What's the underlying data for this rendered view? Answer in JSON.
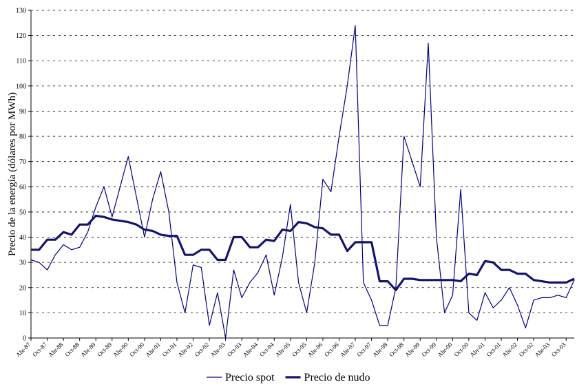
{
  "chart_data": {
    "type": "line",
    "y_label": "Precio de la energía (dólares por MWh)",
    "categories": [
      "Abr-87",
      null,
      "Oct-87",
      null,
      "Abr-88",
      null,
      "Oct-88",
      null,
      "Abr-89",
      null,
      "Oct-89",
      null,
      "Abr-90",
      null,
      "Oct-90",
      null,
      "Abr-91",
      null,
      "Oct-91",
      null,
      "Abr-92",
      null,
      "Oct-92",
      null,
      "Abr-93",
      null,
      "Oct-93",
      null,
      "Abr-94",
      null,
      "Oct-94",
      null,
      "Abr-95",
      null,
      "Oct-95",
      null,
      "Abr-96",
      null,
      "Oct-96",
      null,
      "Abr-97",
      null,
      "Oct-97",
      null,
      "Abr-98",
      null,
      "Oct-98",
      null,
      "Abr-99",
      null,
      "Oct-99",
      null,
      "Abr-00",
      null,
      "Oct-00",
      null,
      "Abr-01",
      null,
      "Oct-01",
      null,
      "Abr-02",
      null,
      "Oct-02",
      null,
      "Abr-03",
      null,
      "Oct-03",
      null
    ],
    "series": [
      {
        "name": "Precio spot",
        "color": "#000080",
        "width": 1.2,
        "values": [
          31,
          30,
          27,
          33,
          37,
          35,
          36,
          42,
          52,
          60,
          48,
          60,
          72,
          56,
          40,
          55,
          66,
          50,
          22,
          10,
          29,
          28,
          5,
          18,
          0,
          27,
          16,
          22,
          26,
          33,
          17,
          32,
          53,
          22,
          10,
          30,
          63,
          58,
          80,
          100,
          124,
          22,
          15,
          5,
          5,
          20,
          80,
          70,
          60,
          117,
          40,
          10,
          17,
          59,
          10,
          7,
          18,
          12,
          15,
          20,
          13,
          4,
          15,
          16,
          16,
          17,
          16,
          23
        ]
      },
      {
        "name": "Precio de nudo",
        "color": "#14146e",
        "width": 3.2,
        "values": [
          35,
          35,
          39,
          39,
          42,
          41,
          45,
          45,
          48.5,
          48,
          47,
          46.5,
          46,
          45,
          43,
          42.5,
          41,
          40.5,
          40.5,
          33,
          33,
          35,
          35,
          31,
          31,
          40,
          40,
          36,
          36,
          39,
          38.5,
          43,
          42.5,
          46,
          45.5,
          44,
          43.5,
          41,
          41,
          34.5,
          38,
          38,
          38,
          22.5,
          22.5,
          19,
          23.5,
          23.5,
          23,
          23,
          23,
          23,
          23,
          22.5,
          25.5,
          25,
          30.5,
          30,
          27,
          27,
          25.5,
          25.5,
          23,
          22.5,
          22,
          22,
          22,
          23.5
        ]
      }
    ],
    "ylim": [
      0,
      130
    ],
    "yticks": [
      0,
      10,
      20,
      30,
      40,
      50,
      60,
      70,
      80,
      90,
      100,
      110,
      120,
      130
    ],
    "grid": true
  }
}
